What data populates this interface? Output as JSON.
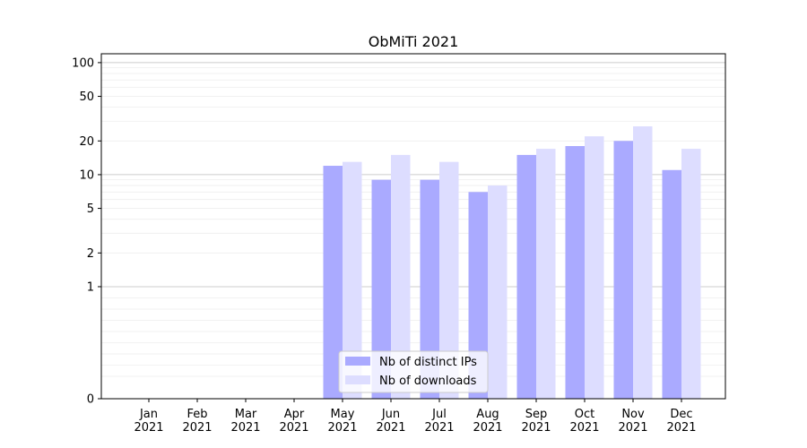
{
  "chart_data": {
    "type": "bar",
    "title": "ObMiTi 2021",
    "xlabel": "",
    "ylabel": "",
    "categories": [
      [
        "Jan",
        "2021"
      ],
      [
        "Feb",
        "2021"
      ],
      [
        "Mar",
        "2021"
      ],
      [
        "Apr",
        "2021"
      ],
      [
        "May",
        "2021"
      ],
      [
        "Jun",
        "2021"
      ],
      [
        "Jul",
        "2021"
      ],
      [
        "Aug",
        "2021"
      ],
      [
        "Sep",
        "2021"
      ],
      [
        "Oct",
        "2021"
      ],
      [
        "Nov",
        "2021"
      ],
      [
        "Dec",
        "2021"
      ]
    ],
    "series": [
      {
        "name": "Nb of distinct IPs",
        "color": "#aaaaff",
        "values": [
          0,
          0,
          0,
          0,
          12,
          9,
          9,
          7,
          15,
          18,
          20,
          11
        ]
      },
      {
        "name": "Nb of downloads",
        "color": "#ddddff",
        "values": [
          0,
          0,
          0,
          0,
          13,
          15,
          13,
          8,
          17,
          22,
          27,
          17
        ]
      }
    ],
    "yscale": "symlog",
    "ylim": [
      0,
      120
    ],
    "yticks": [
      0,
      1,
      2,
      5,
      10,
      20,
      50,
      100
    ],
    "grid": true,
    "legend_position": "bottom-center"
  }
}
